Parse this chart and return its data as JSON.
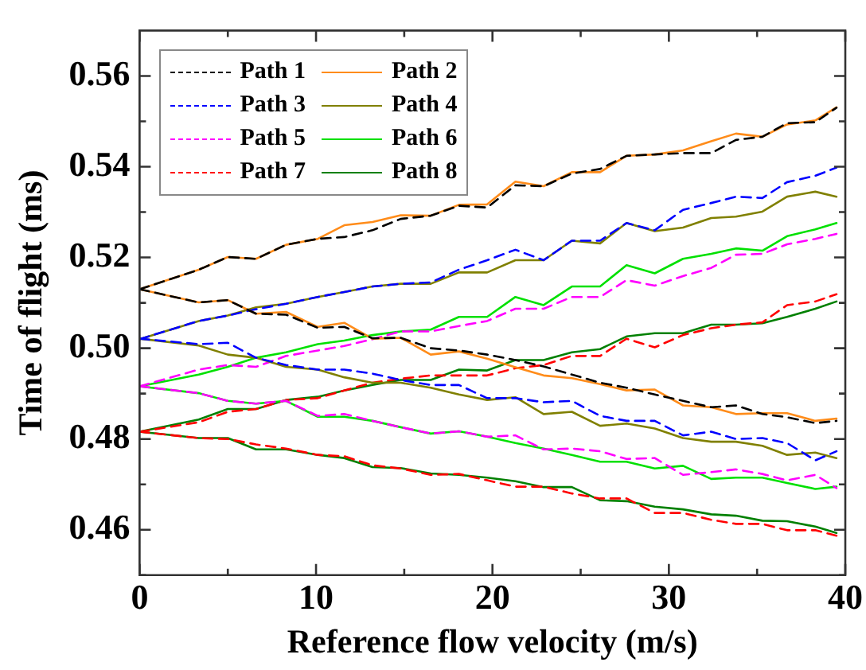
{
  "chart_data": {
    "type": "line",
    "xlabel": "Reference flow velocity (m/s)",
    "ylabel": "Time of flight (ms)",
    "legend": "top left",
    "marker": "none",
    "xlim": [
      0,
      40
    ],
    "xticks": [
      0,
      {
        "value": 5,
        "label": null
      },
      10,
      {
        "value": 15,
        "label": null
      },
      20,
      {
        "value": 25,
        "label": null
      },
      30,
      {
        "value": 35,
        "label": null
      },
      40
    ],
    "ylim": [
      0.45,
      0.57
    ],
    "yticks": [
      {
        "value": 0.45,
        "label": null
      },
      0.46,
      {
        "value": 0.47,
        "label": null
      },
      0.48,
      {
        "value": 0.49,
        "label": null
      },
      {
        "value": 0.5,
        "label": "0.50"
      },
      {
        "value": 0.51,
        "label": null
      },
      0.52,
      {
        "value": 0.53,
        "label": null
      },
      0.54,
      {
        "value": 0.55,
        "label": null
      },
      0.56
    ],
    "x": [
      0,
      3.35,
      5,
      6.6,
      8.3,
      10.1,
      11.6,
      13.2,
      14.8,
      16.5,
      18.1,
      19.7,
      21.3,
      22.9,
      24.5,
      26.1,
      27.6,
      29.2,
      30.8,
      32.4,
      33.8,
      35.3,
      36.7,
      38.3,
      39.5
    ],
    "series": [
      {
        "name": "Path 1",
        "color": "#000000",
        "line_style": "dashed",
        "values": [
          0.513,
          0.5173,
          0.5201,
          0.5197,
          0.5228,
          0.5241,
          0.5245,
          0.526,
          0.5285,
          0.5292,
          0.5314,
          0.531,
          0.5359,
          0.5357,
          0.5385,
          0.5395,
          0.5424,
          0.5427,
          0.543,
          0.543,
          0.5459,
          0.5466,
          0.5496,
          0.5498,
          0.553
        ]
      },
      {
        "color": "#000000",
        "line_style": "dashed",
        "values": [
          0.513,
          0.5101,
          0.5106,
          0.5076,
          0.5074,
          0.5045,
          0.5047,
          0.5022,
          0.5023,
          0.5,
          0.4995,
          0.4986,
          0.4974,
          0.496,
          0.4942,
          0.4924,
          0.4913,
          0.4898,
          0.4884,
          0.487,
          0.4874,
          0.4855,
          0.4848,
          0.4835,
          0.484
        ]
      },
      {
        "name": "Path 2",
        "color": "#ff8c1a",
        "line_style": "solid",
        "values": [
          0.513,
          0.5173,
          0.5201,
          0.5197,
          0.5228,
          0.5241,
          0.5271,
          0.5278,
          0.5293,
          0.5292,
          0.5316,
          0.5317,
          0.5367,
          0.5357,
          0.5388,
          0.5388,
          0.5424,
          0.5427,
          0.5436,
          0.5456,
          0.5473,
          0.5466,
          0.5493,
          0.5502,
          0.5531
        ]
      },
      {
        "color": "#ff8c1a",
        "line_style": "solid",
        "values": [
          0.513,
          0.5101,
          0.5106,
          0.5076,
          0.508,
          0.5047,
          0.5056,
          0.5021,
          0.5023,
          0.4986,
          0.4993,
          0.4977,
          0.4958,
          0.494,
          0.4934,
          0.4921,
          0.4907,
          0.4909,
          0.4874,
          0.487,
          0.4855,
          0.4857,
          0.4857,
          0.484,
          0.4845
        ]
      },
      {
        "name": "Path 3",
        "color": "#0000ff",
        "line_style": "dashed",
        "values": [
          0.502,
          0.506,
          0.5072,
          0.5086,
          0.5098,
          0.5113,
          0.5124,
          0.5136,
          0.5142,
          0.5145,
          0.5173,
          0.5194,
          0.5217,
          0.5194,
          0.5237,
          0.5237,
          0.5276,
          0.526,
          0.5305,
          0.532,
          0.5334,
          0.5331,
          0.5366,
          0.538,
          0.5398
        ]
      },
      {
        "color": "#0000ff",
        "line_style": "dashed",
        "values": [
          0.5021,
          0.5009,
          0.5012,
          0.4979,
          0.4963,
          0.4953,
          0.4953,
          0.4944,
          0.493,
          0.4919,
          0.4919,
          0.489,
          0.489,
          0.4881,
          0.4884,
          0.4851,
          0.484,
          0.484,
          0.4808,
          0.4816,
          0.48,
          0.4802,
          0.4791,
          0.4753,
          0.4773
        ]
      },
      {
        "name": "Path 4",
        "color": "#808000",
        "line_style": "solid",
        "values": [
          0.502,
          0.506,
          0.5072,
          0.509,
          0.5098,
          0.5113,
          0.5124,
          0.5136,
          0.5142,
          0.5142,
          0.5167,
          0.5167,
          0.5194,
          0.5194,
          0.5237,
          0.5231,
          0.5276,
          0.5258,
          0.5266,
          0.5287,
          0.529,
          0.5301,
          0.5334,
          0.5345,
          0.5334
        ]
      },
      {
        "color": "#808000",
        "line_style": "solid",
        "values": [
          0.5021,
          0.5006,
          0.4986,
          0.4979,
          0.4959,
          0.4953,
          0.4936,
          0.4924,
          0.4924,
          0.4913,
          0.4898,
          0.4886,
          0.4892,
          0.4855,
          0.486,
          0.4829,
          0.4834,
          0.4823,
          0.4802,
          0.4794,
          0.4794,
          0.4785,
          0.4765,
          0.477,
          0.4758
        ]
      },
      {
        "name": "Path 5",
        "color": "#ff00ff",
        "line_style": "dashed",
        "values": [
          0.4916,
          0.4953,
          0.4963,
          0.4959,
          0.4983,
          0.4995,
          0.5005,
          0.502,
          0.5037,
          0.5037,
          0.5049,
          0.506,
          0.5087,
          0.5087,
          0.5113,
          0.5113,
          0.515,
          0.5138,
          0.5159,
          0.5177,
          0.5206,
          0.5208,
          0.5229,
          0.5241,
          0.5252
        ]
      },
      {
        "color": "#ff00ff",
        "line_style": "dashed",
        "values": [
          0.4916,
          0.4901,
          0.4884,
          0.4878,
          0.4884,
          0.4851,
          0.4855,
          0.484,
          0.4826,
          0.4812,
          0.4817,
          0.4805,
          0.4808,
          0.4777,
          0.4779,
          0.4773,
          0.4756,
          0.4758,
          0.4721,
          0.4727,
          0.4733,
          0.4723,
          0.4709,
          0.4721,
          0.4692
        ]
      },
      {
        "name": "Path 6",
        "color": "#00e000",
        "line_style": "solid",
        "values": [
          0.4916,
          0.4942,
          0.4959,
          0.4979,
          0.4991,
          0.5009,
          0.5017,
          0.5029,
          0.5037,
          0.5041,
          0.5069,
          0.5069,
          0.5113,
          0.5095,
          0.5136,
          0.5136,
          0.5183,
          0.5165,
          0.5197,
          0.5208,
          0.522,
          0.5215,
          0.5247,
          0.5262,
          0.5276
        ]
      },
      {
        "color": "#00e000",
        "line_style": "solid",
        "values": [
          0.4916,
          0.4901,
          0.4884,
          0.4878,
          0.4884,
          0.4849,
          0.4849,
          0.484,
          0.4826,
          0.4812,
          0.4817,
          0.4805,
          0.4791,
          0.4779,
          0.4765,
          0.475,
          0.475,
          0.4735,
          0.4741,
          0.4712,
          0.4715,
          0.4715,
          0.4703,
          0.469,
          0.4695
        ]
      },
      {
        "name": "Path 7",
        "color": "#ff0000",
        "line_style": "dashed",
        "values": [
          0.4816,
          0.4837,
          0.486,
          0.4866,
          0.4886,
          0.489,
          0.4907,
          0.4924,
          0.4933,
          0.494,
          0.494,
          0.494,
          0.4956,
          0.4963,
          0.4983,
          0.4983,
          0.5021,
          0.5002,
          0.5029,
          0.5044,
          0.5052,
          0.5057,
          0.5095,
          0.5103,
          0.5119
        ]
      },
      {
        "color": "#ff0000",
        "line_style": "dashed",
        "values": [
          0.4816,
          0.4802,
          0.48,
          0.4788,
          0.4779,
          0.4765,
          0.4762,
          0.4742,
          0.4735,
          0.4721,
          0.4723,
          0.4709,
          0.4695,
          0.4695,
          0.468,
          0.4669,
          0.4669,
          0.4637,
          0.4637,
          0.4622,
          0.4613,
          0.4613,
          0.4599,
          0.4599,
          0.4587
        ]
      },
      {
        "name": "Path 8",
        "color": "#008000",
        "line_style": "solid",
        "values": [
          0.4816,
          0.4843,
          0.4866,
          0.4866,
          0.4886,
          0.4893,
          0.4907,
          0.4919,
          0.493,
          0.493,
          0.4953,
          0.4951,
          0.4974,
          0.4974,
          0.4991,
          0.4998,
          0.5026,
          0.5033,
          0.5033,
          0.5052,
          0.5052,
          0.5055,
          0.5069,
          0.5087,
          0.5103
        ]
      },
      {
        "color": "#008000",
        "line_style": "solid",
        "values": [
          0.4816,
          0.4802,
          0.4802,
          0.4777,
          0.4777,
          0.4765,
          0.4758,
          0.4738,
          0.4736,
          0.4724,
          0.4721,
          0.4715,
          0.4707,
          0.4694,
          0.4694,
          0.4665,
          0.4663,
          0.4651,
          0.4645,
          0.4634,
          0.4631,
          0.462,
          0.4619,
          0.4607,
          0.4593
        ]
      }
    ]
  }
}
